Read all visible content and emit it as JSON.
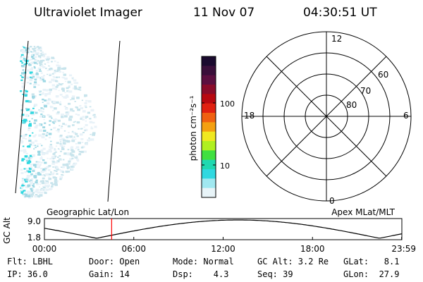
{
  "header": {
    "title": "Ultraviolet Imager",
    "date": "11 Nov 07",
    "time": "04:30:51 UT"
  },
  "colorbar": {
    "label": "photon cm⁻²s⁻¹",
    "ticks": [
      "100",
      "10"
    ],
    "colors": [
      "#1a0a2e",
      "#3a0f3a",
      "#5c1040",
      "#8a0c2a",
      "#b80810",
      "#e02010",
      "#f06010",
      "#f4a010",
      "#f0e820",
      "#b0f020",
      "#40e040",
      "#20d8b0",
      "#30d8e0",
      "#a0e8f0",
      "#e8f4f8"
    ]
  },
  "polar": {
    "hour_labels": [
      "12",
      "18",
      "6",
      "0"
    ],
    "lat_labels": [
      "60",
      "70",
      "80"
    ]
  },
  "timeline": {
    "y_label": "GC Alt",
    "y_ticks": [
      "9.0",
      "1.8"
    ],
    "left_title": "Geographic Lat/Lon",
    "right_title": "Apex MLat/MLT",
    "x_ticks": [
      "00:00",
      "06:00",
      "12:00",
      "18:00",
      "23:59"
    ],
    "marker_time_hours": 4.514,
    "marker_color": "#ff0000"
  },
  "status": {
    "flt": "Flt: LBHL",
    "ip": "IP: 36.0",
    "door": "Door: Open",
    "gain": "Gain: 14",
    "mode": "Mode: Normal",
    "dsp": "Dsp:    4.3",
    "gcalt": "GC Alt: 3.2 Re",
    "seq": "Seq: 39",
    "glat": "GLat:   8.1",
    "glon": "GLon:  27.9"
  },
  "image_colors": {
    "faint": "#e8f2f8",
    "light": "#c8e4ec",
    "mid": "#9fd8e4",
    "bright": "#30d8e0"
  }
}
